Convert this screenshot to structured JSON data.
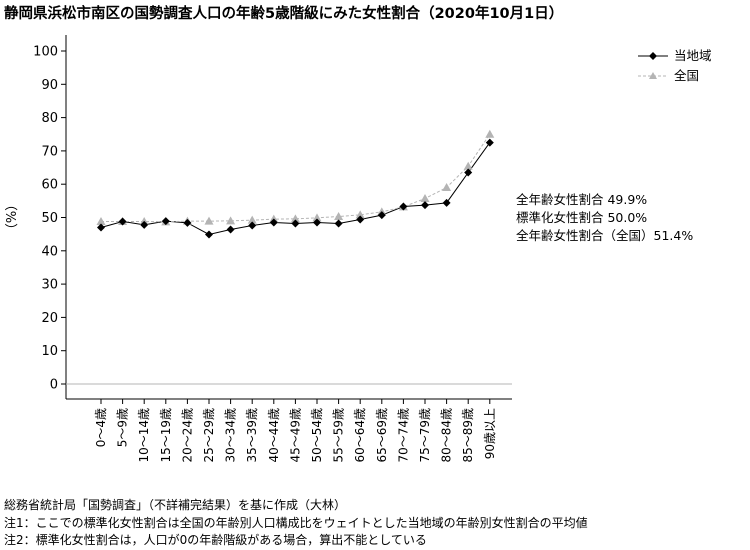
{
  "title": "静岡県浜松市南区の国勢調査人口の年齢5歳階級にみた女性割合（2020年10月1日）",
  "stats": [
    "全年齢女性割合 49.9%",
    "標準化女性割合 50.0%",
    "全年齢女性割合（全国）51.4%"
  ],
  "notes": [
    "総務省統計局「国勢調査」（不詳補完結果）を基に作成（大林）",
    "注1：ここでの標準化女性割合は全国の年齢別人口構成比をウェイトとした当地域の年齢別女性割合の平均値",
    "注2：標準化女性割合は，人口が0の年齢階級がある場合，算出不能としている"
  ],
  "colors": {
    "local": "#000000",
    "national": "#b4b4b4",
    "axis": "#000000",
    "baseline": "#b4b4b4"
  },
  "chart_data": {
    "type": "line",
    "ylabel": "（%）",
    "ylim": [
      0,
      100
    ],
    "yticks": [
      0,
      10,
      20,
      30,
      40,
      50,
      60,
      70,
      80,
      90,
      100
    ],
    "grid": false,
    "legend_position": "top-right",
    "categories": [
      "0～4歳",
      "5～9歳",
      "10～14歳",
      "15～19歳",
      "20～24歳",
      "25～29歳",
      "30～34歳",
      "35～39歳",
      "40～44歳",
      "45～49歳",
      "50～54歳",
      "55～59歳",
      "60～64歳",
      "65～69歳",
      "70～74歳",
      "75～79歳",
      "80～84歳",
      "85～89歳",
      "90歳以上"
    ],
    "series": [
      {
        "name": "当地域",
        "marker": "diamond",
        "line": "solid",
        "values": [
          47.0,
          48.8,
          47.8,
          48.9,
          48.4,
          44.9,
          46.4,
          47.6,
          48.5,
          48.2,
          48.5,
          48.2,
          49.4,
          50.7,
          53.3,
          53.7,
          54.4,
          63.5,
          72.5
        ]
      },
      {
        "name": "全国",
        "marker": "triangle",
        "line": "dashed",
        "values": [
          48.8,
          48.8,
          48.8,
          48.7,
          48.9,
          48.9,
          49.0,
          49.2,
          49.5,
          49.6,
          49.9,
          50.3,
          50.8,
          51.7,
          53.2,
          55.7,
          59.0,
          65.4,
          75.0
        ]
      }
    ]
  }
}
